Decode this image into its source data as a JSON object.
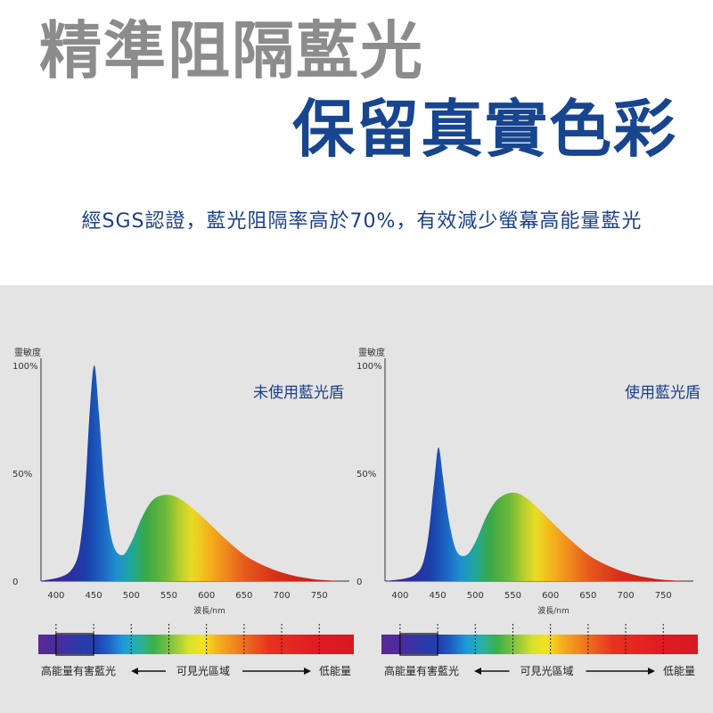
{
  "hero": {
    "title_line1": "精準阻隔藍光",
    "title_line2": "保留真實色彩",
    "description": "經SGS認證，藍光阻隔率高於70%，有效減少螢幕高能量藍光"
  },
  "colors": {
    "title_gray": "#8c8c8c",
    "title_blue": "#17458f",
    "text_blue": "#1a3f8a",
    "panel_bg": "#e4e4e4"
  },
  "chart_data": [
    {
      "type": "area",
      "title": "未使用藍光盾",
      "ylabel": "靈敏度",
      "xlabel": "波長/nm",
      "x": [
        380,
        420,
        435,
        445,
        451,
        457,
        465,
        475,
        488,
        500,
        515,
        530,
        550,
        570,
        600,
        630,
        660,
        700,
        740,
        780
      ],
      "y": [
        0,
        5,
        25,
        80,
        100,
        78,
        42,
        18,
        12,
        18,
        30,
        38,
        40,
        37,
        28,
        18,
        10,
        4,
        1,
        0
      ],
      "xticks": [
        400,
        450,
        500,
        550,
        600,
        650,
        700,
        750
      ],
      "ytick_labels": [
        "100%",
        "50%",
        "0"
      ],
      "yticks": [
        100,
        50,
        0
      ],
      "ylim": [
        0,
        100
      ],
      "xlim": [
        380,
        790
      ],
      "legend": {
        "left_label": "高能量有害藍光",
        "center_label": "可見光區域",
        "right_label": "低能量"
      }
    },
    {
      "type": "area",
      "title": "使用藍光盾",
      "ylabel": "靈敏度",
      "xlabel": "波長/nm",
      "x": [
        380,
        420,
        435,
        445,
        451,
        457,
        465,
        475,
        488,
        500,
        515,
        530,
        550,
        570,
        600,
        630,
        660,
        700,
        740,
        780
      ],
      "y": [
        0,
        3,
        15,
        45,
        62,
        48,
        28,
        14,
        12,
        18,
        30,
        38,
        41,
        38,
        28,
        18,
        10,
        4,
        1,
        0
      ],
      "xticks": [
        400,
        450,
        500,
        550,
        600,
        650,
        700,
        750
      ],
      "ytick_labels": [
        "100%",
        "50%",
        "0"
      ],
      "yticks": [
        100,
        50,
        0
      ],
      "ylim": [
        0,
        100
      ],
      "xlim": [
        380,
        790
      ],
      "legend": {
        "left_label": "高能量有害藍光",
        "center_label": "可見光區域",
        "right_label": "低能量"
      }
    }
  ]
}
